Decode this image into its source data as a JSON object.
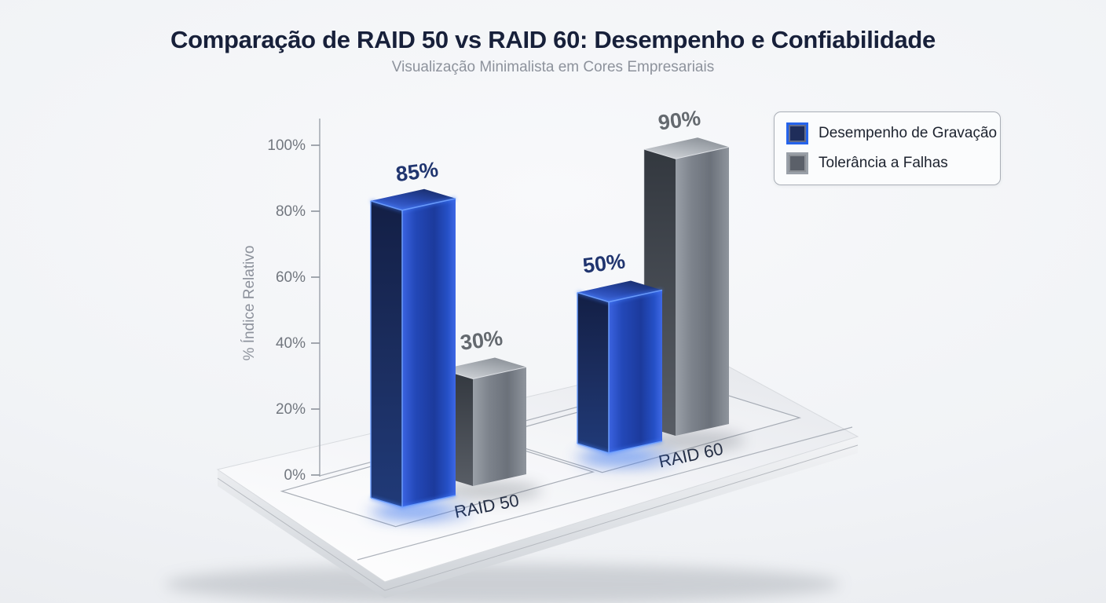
{
  "chart_data": {
    "type": "bar",
    "projection": "3d-perspective",
    "title": "Comparação de RAID 50 vs RAID 60: Desempenho e Confiabilidade",
    "subtitle": "Visualização Minimalista em Cores Empresariais",
    "categories": [
      "RAID 50",
      "RAID 60"
    ],
    "series": [
      {
        "name": "Desempenho de Gravação",
        "values": [
          85,
          50
        ],
        "color": "#1e3a8a",
        "accent": "#2563eb"
      },
      {
        "name": "Tolerância a Falhas",
        "values": [
          30,
          90
        ],
        "color": "#6b7078",
        "accent": "#9aa0a8"
      }
    ],
    "value_label_format": "{value}%",
    "value_labels": [
      "85%",
      "30%",
      "50%",
      "90%"
    ],
    "ylabel": "% Índice Relativo",
    "yticks": [
      "0%",
      "20%",
      "40%",
      "60%",
      "80%",
      "100%"
    ],
    "ylim": [
      0,
      100
    ],
    "grid": "floor-cells",
    "legend_position": "top-right",
    "background_color": "#f1f3f6",
    "floor": "white-glossy-platform"
  },
  "legend": {
    "items": [
      {
        "label": "Desempenho de Gravação",
        "fill": "#1f2d5a",
        "border": "#2563eb"
      },
      {
        "label": "Tolerância a Falhas",
        "fill": "#5b6069",
        "border": "#9aa0a8"
      }
    ]
  }
}
